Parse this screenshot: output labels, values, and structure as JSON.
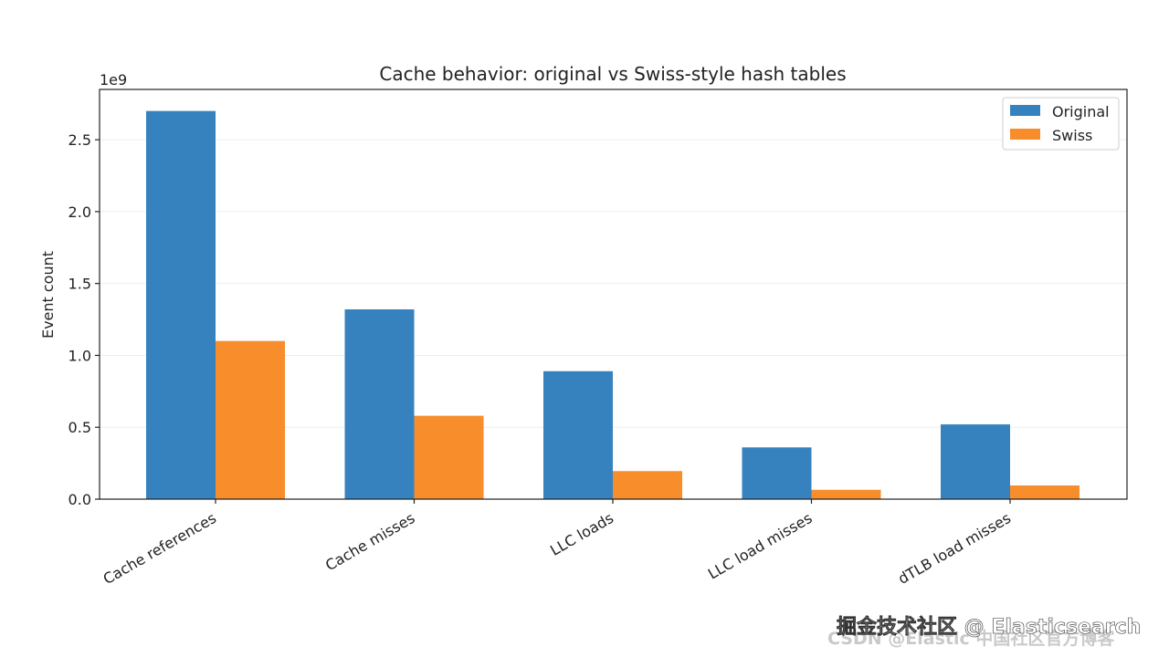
{
  "chart_data": {
    "type": "bar",
    "title": "Cache behavior: original vs Swiss-style hash tables",
    "xlabel": "",
    "ylabel": "Event count",
    "offset_label": "1e9",
    "ylim": [
      0,
      2.85
    ],
    "yticks": [
      0.0,
      0.5,
      1.0,
      1.5,
      2.0,
      2.5
    ],
    "ytick_labels": [
      "0.0",
      "0.5",
      "1.0",
      "1.5",
      "2.0",
      "2.5"
    ],
    "grid": true,
    "legend_position": "top-right",
    "categories": [
      "Cache references",
      "Cache misses",
      "LLC loads",
      "LLC load misses",
      "dTLB load misses"
    ],
    "series": [
      {
        "name": "Original",
        "color": "#3682be",
        "values": [
          2.7,
          1.32,
          0.89,
          0.36,
          0.52
        ]
      },
      {
        "name": "Swiss",
        "color": "#f78d2b",
        "values": [
          1.1,
          0.58,
          0.195,
          0.065,
          0.095
        ]
      }
    ]
  },
  "watermark": {
    "line1": "掘金技术社区 @ Elasticsearch",
    "line2": "CSDN @Elastic 中国社区官方博客"
  }
}
